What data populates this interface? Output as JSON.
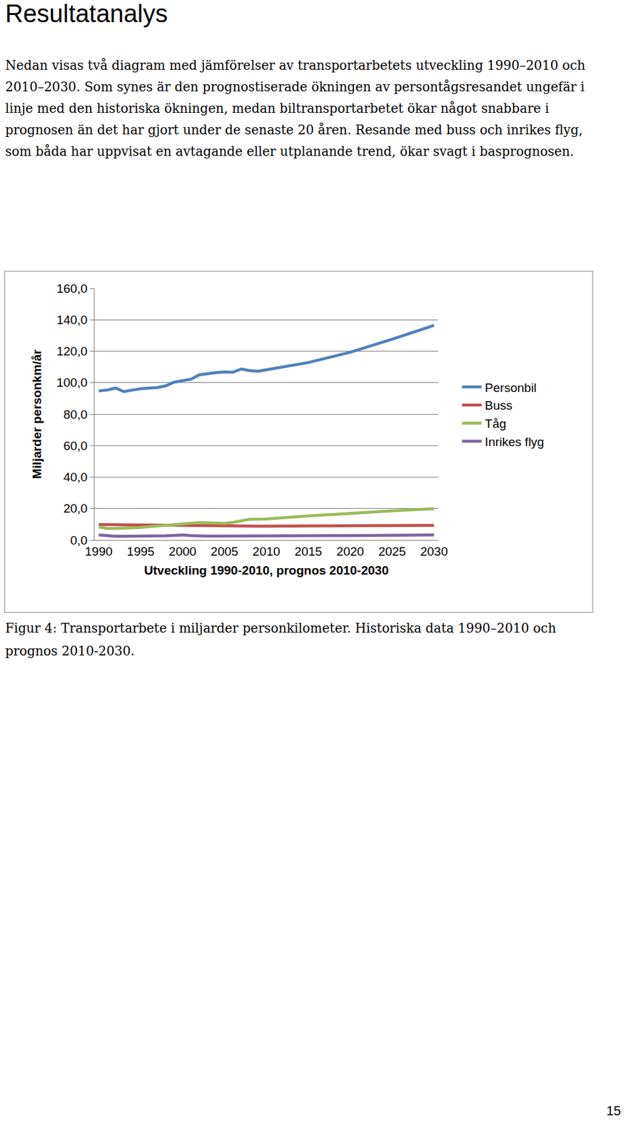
{
  "heading": "Resultatanalys",
  "paragraph": "Nedan visas två diagram med jämförelser av transportarbetets utveckling 1990–2010 och 2010–2030. Som synes är den prognostiserade ökningen av persontågsresandet ungefär i linje med den historiska ökningen, medan biltransportarbetet ökar något snabbare i prognosen än det har gjort under de senaste 20 åren. Resande med buss och inrikes flyg, som båda har uppvisat en avtagande eller utplanande trend, ökar svagt i basprognosen.",
  "chart_data": {
    "type": "line",
    "x_label": "Utveckling 1990-2010, prognos 2010-2030",
    "y_label": "Miljarder personkm/år",
    "x": [
      1990,
      1991,
      1992,
      1993,
      1994,
      1995,
      1996,
      1997,
      1998,
      1999,
      2000,
      2001,
      2002,
      2003,
      2004,
      2005,
      2006,
      2007,
      2008,
      2009,
      2010,
      2015,
      2020,
      2025,
      2030
    ],
    "series": [
      {
        "name": "Personbil",
        "color": "#4f81bd",
        "values": [
          94.8,
          95.3,
          96.6,
          94.3,
          95.3,
          96.2,
          96.6,
          96.9,
          98.0,
          100.3,
          101.3,
          102.2,
          105.0,
          105.9,
          106.4,
          106.8,
          106.6,
          108.7,
          107.7,
          107.3,
          108.2,
          112.8,
          119.3,
          127.6,
          136.4
        ]
      },
      {
        "name": "Buss",
        "color": "#c0504d",
        "values": [
          9.8,
          9.8,
          9.7,
          9.6,
          9.6,
          9.7,
          9.8,
          9.7,
          9.6,
          9.4,
          9.3,
          9.2,
          9.1,
          9.1,
          9.0,
          9.0,
          8.9,
          8.9,
          8.8,
          8.8,
          8.8,
          8.9,
          9.0,
          9.2,
          9.3
        ]
      },
      {
        "name": "Tåg",
        "color": "#9bbb59",
        "values": [
          8.3,
          7.4,
          7.4,
          7.5,
          7.8,
          8.0,
          8.5,
          9.0,
          9.4,
          9.8,
          10.2,
          10.8,
          11.1,
          11.0,
          10.8,
          10.6,
          11.2,
          12.0,
          13.2,
          13.3,
          13.4,
          15.3,
          17.1,
          18.5,
          19.9
        ]
      },
      {
        "name": "Inrikes flyg",
        "color": "#8064a2",
        "values": [
          3.2,
          2.6,
          2.4,
          2.4,
          2.4,
          2.3,
          2.4,
          2.5,
          2.7,
          2.9,
          3.2,
          2.8,
          2.5,
          2.5,
          2.5,
          2.5,
          2.5,
          2.5,
          2.5,
          2.4,
          2.4,
          2.6,
          2.8,
          3.0,
          3.2
        ]
      }
    ],
    "xlim": [
      1989.5,
      2030.5
    ],
    "xticks": [
      1990,
      1995,
      2000,
      2005,
      2010,
      2015,
      2020,
      2025,
      2030
    ],
    "ylim": [
      0,
      160
    ],
    "yticks": [
      {
        "value": 0,
        "label": "0,0"
      },
      {
        "value": 20,
        "label": "20,0"
      },
      {
        "value": 40,
        "label": "40,0"
      },
      {
        "value": 60,
        "label": "60,0"
      },
      {
        "value": 80,
        "label": "80,0"
      },
      {
        "value": 100,
        "label": "100,0"
      },
      {
        "value": 120,
        "label": "120,0"
      },
      {
        "value": 140,
        "label": "140,0"
      },
      {
        "value": 160,
        "label": "160,0"
      }
    ],
    "grid": true,
    "legend": "right",
    "line_style": "solid"
  },
  "caption": "Figur 4: Transportarbete i miljarder personkilometer. Historiska data 1990–2010 och prognos 2010-2030.",
  "page_number": "15"
}
